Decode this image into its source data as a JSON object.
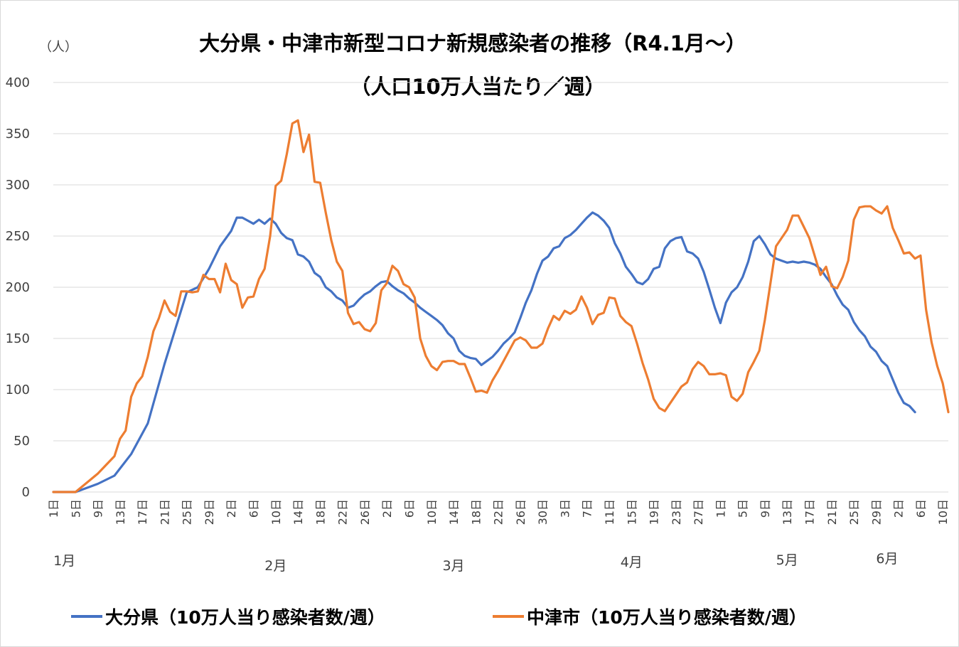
{
  "chart_data": {
    "type": "line",
    "title": "大分県・中津市新型コロナ新規感染者の推移（R4.1月～）",
    "subtitle": "（人口10万人当たり／週）",
    "ylabel": "（人）",
    "ylim": [
      0,
      400
    ],
    "yticks": [
      "0",
      "50",
      "100",
      "150",
      "200",
      "250",
      "300",
      "350",
      "400"
    ],
    "grid": true,
    "legend": "bottom",
    "x_tick_suffix": "日",
    "x_ticks": [
      {
        "i": 0,
        "label": "1"
      },
      {
        "i": 4,
        "label": "5"
      },
      {
        "i": 8,
        "label": "9"
      },
      {
        "i": 12,
        "label": "13"
      },
      {
        "i": 16,
        "label": "17"
      },
      {
        "i": 20,
        "label": "21"
      },
      {
        "i": 24,
        "label": "25"
      },
      {
        "i": 28,
        "label": "29"
      },
      {
        "i": 32,
        "label": "2"
      },
      {
        "i": 36,
        "label": "6"
      },
      {
        "i": 40,
        "label": "10"
      },
      {
        "i": 44,
        "label": "14"
      },
      {
        "i": 48,
        "label": "18"
      },
      {
        "i": 52,
        "label": "22"
      },
      {
        "i": 56,
        "label": "26"
      },
      {
        "i": 60,
        "label": "2"
      },
      {
        "i": 64,
        "label": "6"
      },
      {
        "i": 68,
        "label": "10"
      },
      {
        "i": 72,
        "label": "14"
      },
      {
        "i": 76,
        "label": "18"
      },
      {
        "i": 80,
        "label": "22"
      },
      {
        "i": 84,
        "label": "26"
      },
      {
        "i": 88,
        "label": "30"
      },
      {
        "i": 92,
        "label": "3"
      },
      {
        "i": 96,
        "label": "7"
      },
      {
        "i": 100,
        "label": "11"
      },
      {
        "i": 104,
        "label": "15"
      },
      {
        "i": 108,
        "label": "19"
      },
      {
        "i": 112,
        "label": "23"
      },
      {
        "i": 116,
        "label": "27"
      },
      {
        "i": 120,
        "label": "1"
      },
      {
        "i": 124,
        "label": "5"
      },
      {
        "i": 128,
        "label": "9"
      },
      {
        "i": 132,
        "label": "13"
      },
      {
        "i": 136,
        "label": "17"
      },
      {
        "i": 140,
        "label": "21"
      },
      {
        "i": 144,
        "label": "25"
      },
      {
        "i": 148,
        "label": "29"
      },
      {
        "i": 152,
        "label": "2"
      },
      {
        "i": 156,
        "label": "6"
      },
      {
        "i": 160,
        "label": "10"
      }
    ],
    "month_labels": [
      {
        "label": "1月",
        "i": 2
      },
      {
        "label": "2月",
        "i": 40
      },
      {
        "label": "3月",
        "i": 72
      },
      {
        "label": "4月",
        "i": 104
      },
      {
        "label": "5月",
        "i": 132
      },
      {
        "label": "6月",
        "i": 150
      }
    ],
    "series": [
      {
        "name": "大分県（10万人当り感染者数/週）",
        "color": "#4472C4",
        "points": [
          [
            0,
            0
          ],
          [
            4,
            0
          ],
          [
            8,
            8
          ],
          [
            11,
            16
          ],
          [
            14,
            37
          ],
          [
            17,
            67
          ],
          [
            20,
            125
          ],
          [
            22,
            160
          ],
          [
            24,
            195
          ],
          [
            26,
            200
          ],
          [
            28,
            218
          ],
          [
            30,
            240
          ],
          [
            32,
            255
          ],
          [
            33,
            268
          ],
          [
            34,
            268
          ],
          [
            35,
            265
          ],
          [
            36,
            262
          ],
          [
            37,
            266
          ],
          [
            38,
            262
          ],
          [
            39,
            267
          ],
          [
            40,
            262
          ],
          [
            41,
            253
          ],
          [
            42,
            248
          ],
          [
            43,
            246
          ],
          [
            44,
            232
          ],
          [
            45,
            230
          ],
          [
            46,
            225
          ],
          [
            47,
            214
          ],
          [
            48,
            210
          ],
          [
            49,
            200
          ],
          [
            50,
            196
          ],
          [
            51,
            190
          ],
          [
            52,
            187
          ],
          [
            53,
            180
          ],
          [
            54,
            182
          ],
          [
            55,
            188
          ],
          [
            56,
            193
          ],
          [
            57,
            196
          ],
          [
            58,
            201
          ],
          [
            59,
            205
          ],
          [
            60,
            206
          ],
          [
            61,
            201
          ],
          [
            62,
            197
          ],
          [
            63,
            194
          ],
          [
            64,
            189
          ],
          [
            65,
            185
          ],
          [
            66,
            180
          ],
          [
            67,
            176
          ],
          [
            68,
            172
          ],
          [
            69,
            168
          ],
          [
            70,
            163
          ],
          [
            71,
            155
          ],
          [
            72,
            150
          ],
          [
            73,
            138
          ],
          [
            74,
            133
          ],
          [
            75,
            131
          ],
          [
            76,
            130
          ],
          [
            77,
            124
          ],
          [
            78,
            128
          ],
          [
            79,
            132
          ],
          [
            80,
            138
          ],
          [
            81,
            145
          ],
          [
            82,
            150
          ],
          [
            83,
            156
          ],
          [
            84,
            170
          ],
          [
            85,
            185
          ],
          [
            86,
            197
          ],
          [
            87,
            213
          ],
          [
            88,
            226
          ],
          [
            89,
            230
          ],
          [
            90,
            238
          ],
          [
            91,
            240
          ],
          [
            92,
            248
          ],
          [
            93,
            251
          ],
          [
            94,
            256
          ],
          [
            95,
            262
          ],
          [
            96,
            268
          ],
          [
            97,
            273
          ],
          [
            98,
            270
          ],
          [
            99,
            265
          ],
          [
            100,
            258
          ],
          [
            101,
            243
          ],
          [
            102,
            233
          ],
          [
            103,
            220
          ],
          [
            104,
            213
          ],
          [
            105,
            205
          ],
          [
            106,
            203
          ],
          [
            107,
            208
          ],
          [
            108,
            218
          ],
          [
            109,
            220
          ],
          [
            110,
            238
          ],
          [
            111,
            245
          ],
          [
            112,
            248
          ],
          [
            113,
            249
          ],
          [
            114,
            235
          ],
          [
            115,
            233
          ],
          [
            116,
            228
          ],
          [
            117,
            215
          ],
          [
            118,
            198
          ],
          [
            119,
            180
          ],
          [
            120,
            165
          ],
          [
            121,
            185
          ],
          [
            122,
            195
          ],
          [
            123,
            200
          ],
          [
            124,
            210
          ],
          [
            125,
            225
          ],
          [
            126,
            245
          ],
          [
            127,
            250
          ],
          [
            128,
            242
          ],
          [
            129,
            232
          ],
          [
            130,
            228
          ],
          [
            131,
            226
          ],
          [
            132,
            224
          ],
          [
            133,
            225
          ],
          [
            134,
            224
          ],
          [
            135,
            225
          ],
          [
            136,
            224
          ],
          [
            137,
            222
          ],
          [
            138,
            218
          ],
          [
            139,
            210
          ],
          [
            140,
            203
          ],
          [
            141,
            192
          ],
          [
            142,
            183
          ],
          [
            143,
            178
          ],
          [
            144,
            166
          ],
          [
            145,
            158
          ],
          [
            146,
            152
          ],
          [
            147,
            142
          ],
          [
            148,
            137
          ],
          [
            149,
            128
          ],
          [
            150,
            123
          ],
          [
            151,
            110
          ],
          [
            152,
            97
          ],
          [
            153,
            87
          ],
          [
            154,
            84
          ],
          [
            155,
            78
          ]
        ]
      },
      {
        "name": "中津市（10万人当り感染者数/週）",
        "color": "#ED7D31",
        "points": [
          [
            0,
            0
          ],
          [
            4,
            0
          ],
          [
            8,
            18
          ],
          [
            11,
            35
          ],
          [
            12,
            52
          ],
          [
            13,
            60
          ],
          [
            14,
            93
          ],
          [
            15,
            106
          ],
          [
            16,
            113
          ],
          [
            17,
            132
          ],
          [
            18,
            157
          ],
          [
            19,
            170
          ],
          [
            20,
            187
          ],
          [
            21,
            176
          ],
          [
            22,
            172
          ],
          [
            23,
            196
          ],
          [
            24,
            196
          ],
          [
            25,
            195
          ],
          [
            26,
            196
          ],
          [
            27,
            212
          ],
          [
            28,
            208
          ],
          [
            29,
            208
          ],
          [
            30,
            195
          ],
          [
            31,
            223
          ],
          [
            32,
            207
          ],
          [
            33,
            203
          ],
          [
            34,
            180
          ],
          [
            35,
            190
          ],
          [
            36,
            191
          ],
          [
            37,
            208
          ],
          [
            38,
            218
          ],
          [
            39,
            250
          ],
          [
            40,
            299
          ],
          [
            41,
            304
          ],
          [
            42,
            330
          ],
          [
            43,
            360
          ],
          [
            44,
            363
          ],
          [
            45,
            332
          ],
          [
            46,
            349
          ],
          [
            47,
            303
          ],
          [
            48,
            302
          ],
          [
            49,
            273
          ],
          [
            50,
            246
          ],
          [
            51,
            225
          ],
          [
            52,
            216
          ],
          [
            53,
            175
          ],
          [
            54,
            164
          ],
          [
            55,
            166
          ],
          [
            56,
            159
          ],
          [
            57,
            157
          ],
          [
            58,
            165
          ],
          [
            59,
            197
          ],
          [
            60,
            204
          ],
          [
            61,
            221
          ],
          [
            62,
            216
          ],
          [
            63,
            203
          ],
          [
            64,
            200
          ],
          [
            65,
            190
          ],
          [
            66,
            150
          ],
          [
            67,
            133
          ],
          [
            68,
            123
          ],
          [
            69,
            119
          ],
          [
            70,
            127
          ],
          [
            71,
            128
          ],
          [
            72,
            128
          ],
          [
            73,
            125
          ],
          [
            74,
            125
          ],
          [
            75,
            112
          ],
          [
            76,
            98
          ],
          [
            77,
            99
          ],
          [
            78,
            97
          ],
          [
            79,
            109
          ],
          [
            80,
            118
          ],
          [
            81,
            128
          ],
          [
            82,
            138
          ],
          [
            83,
            148
          ],
          [
            84,
            151
          ],
          [
            85,
            148
          ],
          [
            86,
            141
          ],
          [
            87,
            141
          ],
          [
            88,
            145
          ],
          [
            89,
            160
          ],
          [
            90,
            172
          ],
          [
            91,
            168
          ],
          [
            92,
            177
          ],
          [
            93,
            174
          ],
          [
            94,
            178
          ],
          [
            95,
            191
          ],
          [
            96,
            180
          ],
          [
            97,
            164
          ],
          [
            98,
            173
          ],
          [
            99,
            175
          ],
          [
            100,
            190
          ],
          [
            101,
            189
          ],
          [
            102,
            172
          ],
          [
            103,
            166
          ],
          [
            104,
            162
          ],
          [
            105,
            145
          ],
          [
            106,
            126
          ],
          [
            107,
            110
          ],
          [
            108,
            91
          ],
          [
            109,
            82
          ],
          [
            110,
            79
          ],
          [
            111,
            87
          ],
          [
            112,
            95
          ],
          [
            113,
            103
          ],
          [
            114,
            107
          ],
          [
            115,
            120
          ],
          [
            116,
            127
          ],
          [
            117,
            123
          ],
          [
            118,
            115
          ],
          [
            119,
            115
          ],
          [
            120,
            116
          ],
          [
            121,
            114
          ],
          [
            122,
            93
          ],
          [
            123,
            89
          ],
          [
            124,
            96
          ],
          [
            125,
            117
          ],
          [
            126,
            127
          ],
          [
            127,
            138
          ],
          [
            128,
            168
          ],
          [
            129,
            204
          ],
          [
            130,
            240
          ],
          [
            131,
            248
          ],
          [
            132,
            256
          ],
          [
            133,
            270
          ],
          [
            134,
            270
          ],
          [
            135,
            259
          ],
          [
            136,
            248
          ],
          [
            137,
            230
          ],
          [
            138,
            212
          ],
          [
            139,
            220
          ],
          [
            140,
            201
          ],
          [
            141,
            199
          ],
          [
            142,
            210
          ],
          [
            143,
            226
          ],
          [
            144,
            266
          ],
          [
            145,
            278
          ],
          [
            146,
            279
          ],
          [
            147,
            279
          ],
          [
            148,
            275
          ],
          [
            149,
            272
          ],
          [
            150,
            279
          ],
          [
            151,
            258
          ],
          [
            152,
            246
          ],
          [
            153,
            233
          ],
          [
            154,
            234
          ],
          [
            155,
            228
          ],
          [
            156,
            231
          ],
          [
            157,
            178
          ],
          [
            158,
            146
          ],
          [
            159,
            123
          ],
          [
            160,
            106
          ],
          [
            161,
            78
          ]
        ]
      }
    ]
  }
}
